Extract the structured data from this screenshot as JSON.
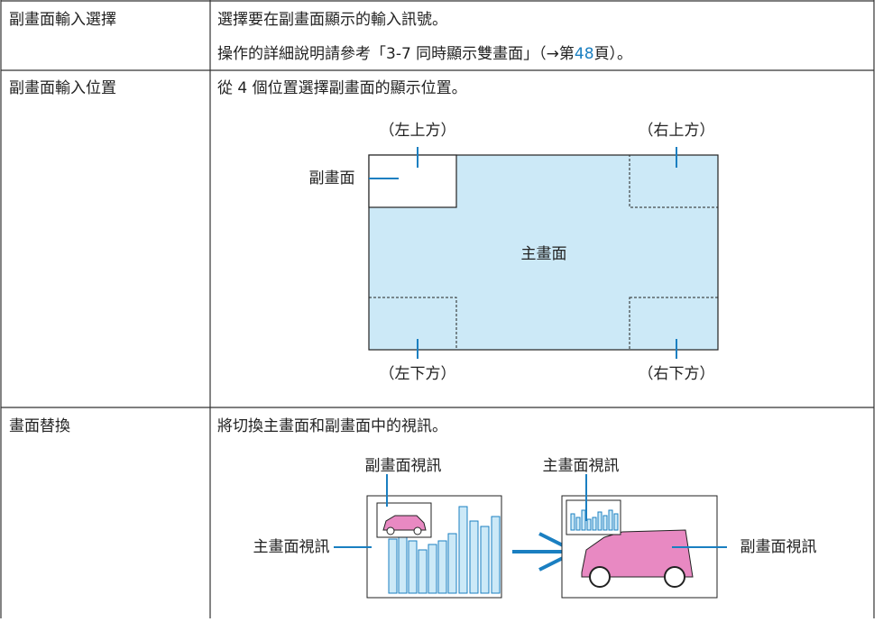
{
  "table": {
    "rows": [
      {
        "label": "副畫面輸入選擇",
        "lines": [
          "選擇要在副畫面顯示的輸入訊號。"
        ],
        "ref": {
          "before": "操作的詳細說明請參考「3-7 同時顯示雙畫面」（→第",
          "page": "48",
          "after": "頁）。"
        }
      },
      {
        "label": "副畫面輸入位置",
        "lines": [
          "從 4 個位置選擇副畫面的顯示位置。"
        ],
        "diagram": {
          "top_left": "（左上方）",
          "top_right": "（右上方）",
          "sub": "副畫面",
          "main": "主畫面",
          "bottom_left": "（左下方）",
          "bottom_right": "（右下方）"
        }
      },
      {
        "label": "畫面替換",
        "lines": [
          "將切換主畫面和副畫面中的視訊。"
        ],
        "diagram": {
          "left_sub": "副畫面視訊",
          "left_main": "主畫面視訊",
          "right_main": "主畫面視訊",
          "right_sub": "副畫面視訊"
        }
      }
    ]
  }
}
